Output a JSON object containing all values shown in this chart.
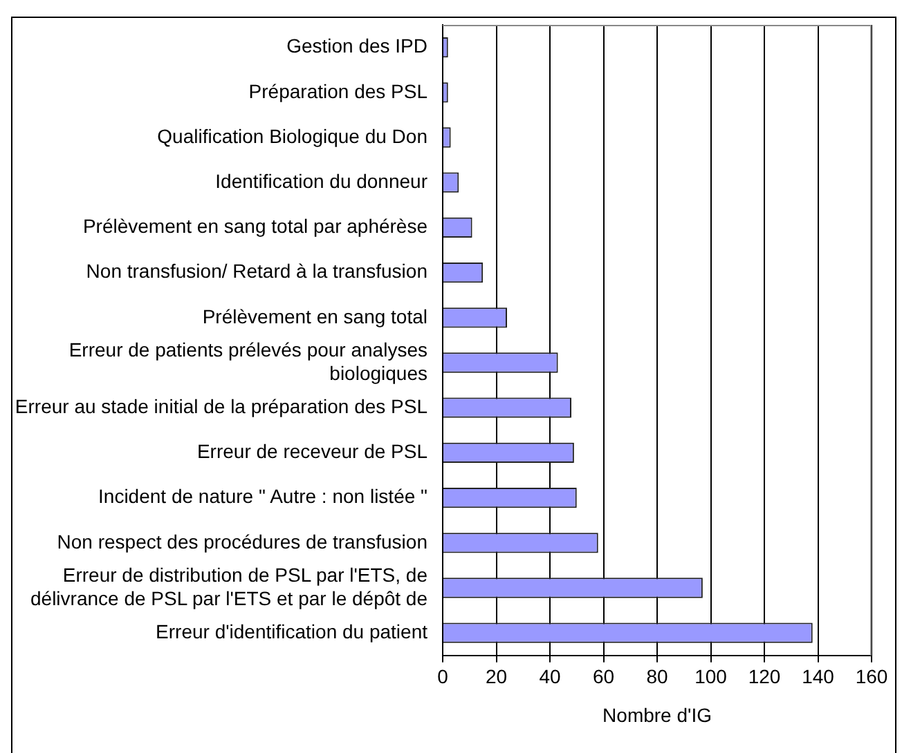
{
  "chart_data": {
    "type": "bar",
    "orientation": "horizontal",
    "xlabel": "Nombre d'IG",
    "categories": [
      "Gestion des IPD",
      "Préparation des PSL",
      "Qualification Biologique du Don",
      "Identification du donneur",
      "Prélèvement en sang total par aphérèse",
      "Non transfusion/ Retard à la transfusion",
      "Prélèvement en sang total",
      "Erreur de patients prélevés pour analyses biologiques",
      "Erreur au stade initial de la préparation des PSL",
      "Erreur de receveur de PSL",
      "Incident de nature \" Autre : non listée \"",
      "Non respect des procédures de transfusion",
      "Erreur de distribution de PSL par l'ETS, de délivrance de PSL par l'ETS et par le dépôt de",
      "Erreur d'identification du patient"
    ],
    "values": [
      2,
      2,
      3,
      6,
      11,
      15,
      24,
      43,
      48,
      49,
      50,
      58,
      97,
      138
    ],
    "color": "#9999ff",
    "xlim": [
      0,
      160
    ],
    "xticks": [
      0,
      20,
      40,
      60,
      80,
      100,
      120,
      140,
      160
    ],
    "grid": "x",
    "legend": false
  }
}
